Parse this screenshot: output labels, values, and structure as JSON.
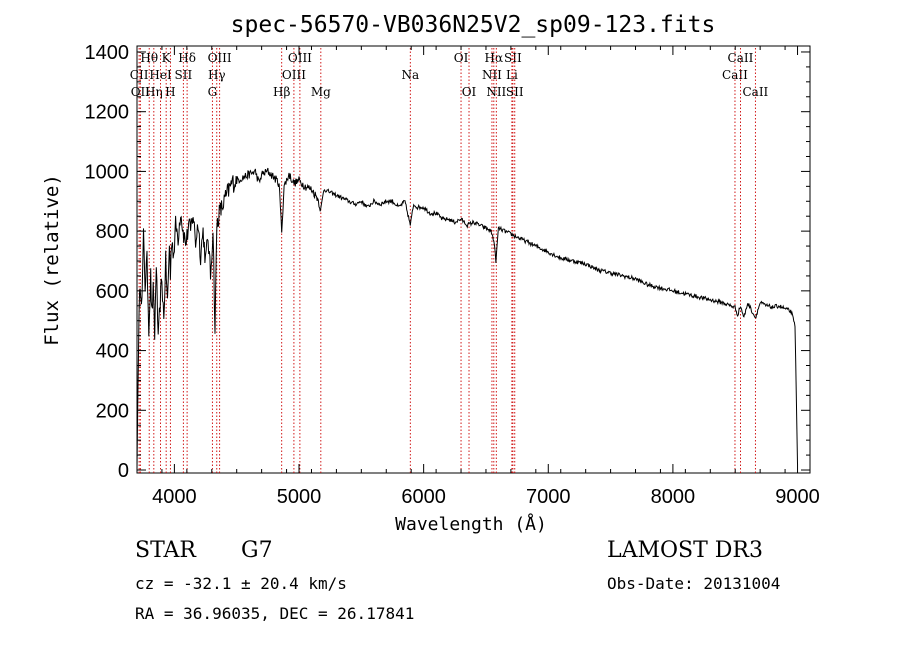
{
  "chart_data": {
    "type": "line",
    "title": "spec-56570-VB036N25V2_sp09-123.fits",
    "xlabel": "Wavelength (Å)",
    "ylabel": "Flux (relative)",
    "xlim": [
      3700,
      9100
    ],
    "ylim": [
      -10,
      1420
    ],
    "xticks": [
      4000,
      5000,
      6000,
      7000,
      8000,
      9000
    ],
    "yticks": [
      0,
      200,
      400,
      600,
      800,
      1000,
      1200,
      1400
    ],
    "grid": false,
    "line_color": "#000000",
    "marker_color": "#cc0000",
    "series": [
      {
        "name": "flux",
        "x": [
          3700,
          3712,
          3725,
          3740,
          3752,
          3765,
          3780,
          3795,
          3810,
          3818,
          3830,
          3842,
          3855,
          3870,
          3885,
          3900,
          3915,
          3930,
          3945,
          3960,
          3968,
          3980,
          3995,
          4010,
          4030,
          4050,
          4070,
          4090,
          4101,
          4115,
          4130,
          4150,
          4170,
          4190,
          4210,
          4230,
          4250,
          4270,
          4290,
          4310,
          4326,
          4340,
          4360,
          4383,
          4400,
          4430,
          4460,
          4500,
          4550,
          4600,
          4650,
          4680,
          4700,
          4750,
          4800,
          4840,
          4861,
          4880,
          4920,
          4960,
          5000,
          5050,
          5100,
          5150,
          5175,
          5200,
          5250,
          5300,
          5350,
          5400,
          5450,
          5500,
          5550,
          5600,
          5650,
          5700,
          5750,
          5800,
          5850,
          5893,
          5920,
          5950,
          6000,
          6050,
          6100,
          6150,
          6200,
          6250,
          6300,
          6350,
          6400,
          6450,
          6500,
          6540,
          6563,
          6580,
          6600,
          6650,
          6700,
          6750,
          6800,
          6900,
          7000,
          7100,
          7200,
          7300,
          7400,
          7500,
          7600,
          7700,
          7800,
          7900,
          8000,
          8100,
          8200,
          8300,
          8400,
          8498,
          8520,
          8542,
          8570,
          8600,
          8662,
          8700,
          8750,
          8800,
          8850,
          8900,
          8950,
          8980,
          9000
        ],
        "y": [
          0,
          420,
          640,
          560,
          780,
          620,
          700,
          480,
          650,
          520,
          600,
          450,
          700,
          420,
          560,
          640,
          500,
          700,
          560,
          760,
          650,
          780,
          720,
          820,
          780,
          870,
          800,
          760,
          780,
          820,
          800,
          860,
          760,
          830,
          720,
          800,
          700,
          780,
          650,
          810,
          460,
          820,
          860,
          880,
          900,
          930,
          960,
          970,
          980,
          990,
          1000,
          960,
          990,
          1000,
          980,
          960,
          800,
          950,
          990,
          960,
          970,
          950,
          940,
          910,
          870,
          940,
          930,
          920,
          910,
          900,
          890,
          900,
          880,
          900,
          890,
          900,
          900,
          880,
          900,
          820,
          890,
          880,
          880,
          860,
          860,
          840,
          840,
          830,
          840,
          820,
          830,
          820,
          810,
          800,
          770,
          700,
          810,
          800,
          790,
          780,
          770,
          750,
          730,
          710,
          700,
          690,
          670,
          660,
          650,
          640,
          620,
          610,
          600,
          590,
          580,
          570,
          560,
          545,
          520,
          550,
          510,
          560,
          510,
          560,
          550,
          545,
          550,
          540,
          530,
          480,
          20
        ]
      }
    ],
    "line_markers": [
      {
        "name": "CII",
        "wl": 3717,
        "label": "CII",
        "row": 1
      },
      {
        "name": "OII",
        "wl": 3727,
        "label": "OII",
        "row": 2
      },
      {
        "name": "H-theta",
        "wl": 3798,
        "label": "Hθ",
        "row": 0
      },
      {
        "name": "H-eta",
        "wl": 3835,
        "label": "Hη",
        "row": 2
      },
      {
        "name": "HeI",
        "wl": 3889,
        "label": "HeI",
        "row": 1
      },
      {
        "name": "K",
        "wl": 3934,
        "label": "K",
        "row": 0
      },
      {
        "name": "H",
        "wl": 3968,
        "label": "H",
        "row": 2
      },
      {
        "name": "SII-4072",
        "wl": 4072,
        "label": "SII",
        "row": 1
      },
      {
        "name": "H-delta",
        "wl": 4102,
        "label": "Hδ",
        "row": 0
      },
      {
        "name": "G",
        "wl": 4305,
        "label": "G",
        "row": 2
      },
      {
        "name": "H-gamma",
        "wl": 4340,
        "label": "Hγ",
        "row": 1
      },
      {
        "name": "OIII-4363",
        "wl": 4363,
        "label": "OIII",
        "row": 0
      },
      {
        "name": "H-beta",
        "wl": 4861,
        "label": "Hβ",
        "row": 2
      },
      {
        "name": "OIII-4959",
        "wl": 4959,
        "label": "OIII",
        "row": 1
      },
      {
        "name": "OIII-5007",
        "wl": 5007,
        "label": "OIII",
        "row": 0
      },
      {
        "name": "Mg",
        "wl": 5175,
        "label": "Mg",
        "row": 2
      },
      {
        "name": "Na",
        "wl": 5893,
        "label": "Na",
        "row": 1
      },
      {
        "name": "OI-6300",
        "wl": 6300,
        "label": "OI",
        "row": 0
      },
      {
        "name": "OI-6364",
        "wl": 6364,
        "label": "OI",
        "row": 2
      },
      {
        "name": "NII-6548",
        "wl": 6548,
        "label": "NII",
        "row": 1
      },
      {
        "name": "H-alpha",
        "wl": 6563,
        "label": "Hα",
        "row": 0
      },
      {
        "name": "NII-6583",
        "wl": 6583,
        "label": "NII",
        "row": 2
      },
      {
        "name": "Li",
        "wl": 6708,
        "label": "Li",
        "row": 1
      },
      {
        "name": "SII-6716",
        "wl": 6716,
        "label": "SII",
        "row": 0
      },
      {
        "name": "SII-6731",
        "wl": 6731,
        "label": "SII",
        "row": 2
      },
      {
        "name": "CaII-8498",
        "wl": 8498,
        "label": "CaII",
        "row": 1
      },
      {
        "name": "CaII-8542",
        "wl": 8542,
        "label": "CaII",
        "row": 0
      },
      {
        "name": "CaII-8662",
        "wl": 8662,
        "label": "CaII",
        "row": 2
      }
    ]
  },
  "info": {
    "object_class": "STAR",
    "subclass": "G7",
    "survey": "LAMOST DR3",
    "cz": "cz = -32.1 ± 20.4 km/s",
    "obs_date": "Obs-Date: 20131004",
    "coords": "RA =  36.96035, DEC =  26.17841"
  }
}
